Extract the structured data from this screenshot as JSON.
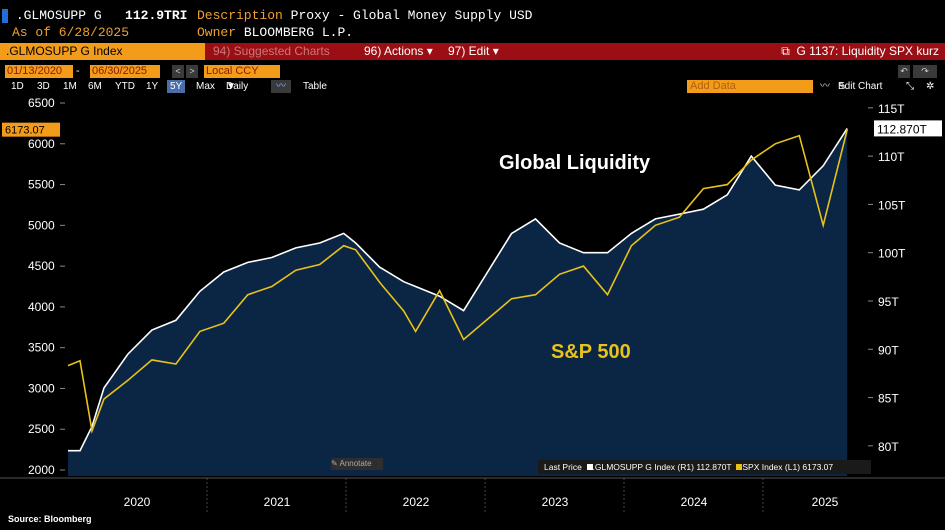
{
  "header": {
    "ticker": ".GLMOSUPP G",
    "value": "112.9TRI",
    "desc_label": "Description",
    "desc_value": "Proxy - Global Money Supply USD",
    "asof": "As of 6/28/2025",
    "owner_label": "Owner",
    "owner_value": "BLOOMBERG L.P."
  },
  "toolbar": {
    "index": ".GLMOSUPP G Index",
    "suggested": "94) Suggested Charts",
    "actions": "96) Actions",
    "edit": "97) Edit",
    "chart_title": "G 1137: Liquidity SPX kurz",
    "start_date": "01/13/2020",
    "end_date": "06/30/2025",
    "currency": "Local CCY",
    "add_data": "Add Data",
    "edit_chart": "Edit Chart",
    "table": "Table",
    "periods": [
      "1D",
      "3D",
      "1M",
      "6M",
      "YTD",
      "1Y",
      "5Y",
      "Max"
    ],
    "selected_period": "5Y",
    "freq": "Daily"
  },
  "legend": {
    "last_price": "Last Price",
    "series1": ".GLMOSUPP G Index",
    "series1_axis": "(R1)",
    "series1_val": "112.870T",
    "series2": "SPX Index",
    "series2_axis": "(L1)",
    "series2_val": "6173.07",
    "annotate": "Annotate"
  },
  "source": "Source: Bloomberg",
  "colors": {
    "liquidity": "#ffffff",
    "spx": "#e8c21a",
    "area": "#0b2544",
    "accent": "#f39c1a"
  },
  "chart_data": {
    "type": "line",
    "annotations": [
      "Global Liquidity",
      "S&P 500"
    ],
    "x_ticks": [
      "2020",
      "2021",
      "2022",
      "2023",
      "2024",
      "2025"
    ],
    "y_left": {
      "ticks": [
        2000,
        2500,
        3000,
        3500,
        4000,
        4500,
        5000,
        5500,
        6000,
        6500
      ],
      "range": [
        2000,
        6500
      ],
      "last": "6173.07"
    },
    "y_right": {
      "ticks": [
        "80T",
        "85T",
        "90T",
        "95T",
        "100T",
        "105T",
        "110T",
        "115T"
      ],
      "range": [
        77.5,
        115.5
      ],
      "last": "112.870T"
    },
    "series": [
      {
        "name": "SPX Index",
        "axis": "left",
        "x": [
          "2020-01",
          "2020-02",
          "2020-03",
          "2020-04",
          "2020-06",
          "2020-08",
          "2020-10",
          "2020-12",
          "2021-02",
          "2021-04",
          "2021-06",
          "2021-08",
          "2021-10",
          "2021-12",
          "2022-01",
          "2022-03",
          "2022-05",
          "2022-06",
          "2022-08",
          "2022-10",
          "2022-12",
          "2023-02",
          "2023-04",
          "2023-06",
          "2023-08",
          "2023-10",
          "2023-12",
          "2024-02",
          "2024-04",
          "2024-06",
          "2024-08",
          "2024-10",
          "2024-12",
          "2025-02",
          "2025-04",
          "2025-06"
        ],
        "values": [
          3280,
          3340,
          2480,
          2870,
          3100,
          3350,
          3300,
          3700,
          3800,
          4150,
          4250,
          4450,
          4520,
          4750,
          4700,
          4300,
          3950,
          3700,
          4200,
          3600,
          3850,
          4100,
          4150,
          4400,
          4500,
          4150,
          4750,
          5000,
          5100,
          5450,
          5500,
          5800,
          6000,
          6100,
          5000,
          6173
        ]
      },
      {
        "name": ".GLMOSUPP G Index",
        "axis": "right",
        "x": [
          "2020-01",
          "2020-02",
          "2020-03",
          "2020-04",
          "2020-06",
          "2020-08",
          "2020-10",
          "2020-12",
          "2021-02",
          "2021-04",
          "2021-06",
          "2021-08",
          "2021-10",
          "2021-12",
          "2022-01",
          "2022-03",
          "2022-05",
          "2022-06",
          "2022-08",
          "2022-10",
          "2022-12",
          "2023-02",
          "2023-04",
          "2023-06",
          "2023-08",
          "2023-10",
          "2023-12",
          "2024-02",
          "2024-04",
          "2024-06",
          "2024-08",
          "2024-10",
          "2024-12",
          "2025-02",
          "2025-04",
          "2025-06"
        ],
        "values": [
          79.5,
          79.5,
          82,
          86,
          89.5,
          92,
          93,
          96,
          98,
          99,
          99.5,
          100.5,
          101,
          102,
          101,
          98.5,
          97,
          96.5,
          95.5,
          94,
          98,
          102,
          103.5,
          101,
          100,
          100,
          102,
          103.5,
          104,
          104.5,
          106,
          110,
          107,
          106.5,
          109,
          112.87
        ]
      }
    ]
  }
}
